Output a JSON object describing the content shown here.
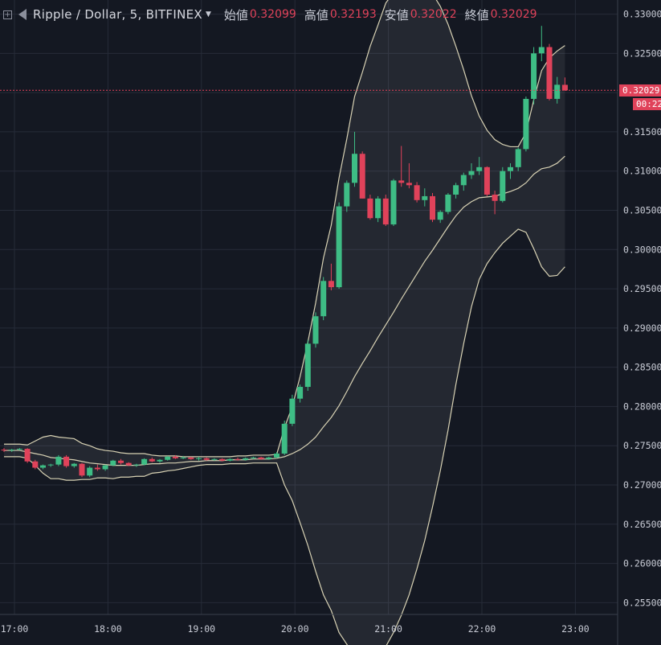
{
  "legend": {
    "symbol": "Ripple / Dollar, 5, BITFINEX",
    "open_label": "始値",
    "open": "0.32099",
    "high_label": "高値",
    "high": "0.32193",
    "low_label": "安値",
    "low": "0.32022",
    "close_label": "終値",
    "close": "0.32029"
  },
  "price_tag": {
    "price": "0.32029",
    "countdown": "00:22",
    "color": "#e0425a"
  },
  "colors": {
    "up": "#3ebd85",
    "down": "#e0425a",
    "band": "#d8d2b4",
    "background": "#141822",
    "grid": "#262b38"
  },
  "chart_data": {
    "type": "candlestick",
    "y_ticks": [
      "0.33000",
      "0.32500",
      "0.32000",
      "0.31500",
      "0.31000",
      "0.30500",
      "0.30000",
      "0.29500",
      "0.29000",
      "0.28500",
      "0.28000",
      "0.27500",
      "0.27000",
      "0.26500",
      "0.26000",
      "0.25500"
    ],
    "x_ticks": [
      "17:00",
      "18:00",
      "19:00",
      "20:00",
      "21:00",
      "22:00",
      "23:00"
    ],
    "ylim": [
      0.2535,
      0.3318
    ],
    "grid": true,
    "current_price": 0.32029,
    "candles": [
      [
        0.2745,
        0.2747,
        0.2742,
        0.2744
      ],
      [
        0.2744,
        0.2746,
        0.2742,
        0.2745
      ],
      [
        0.2745,
        0.2747,
        0.2744,
        0.2746
      ],
      [
        0.2746,
        0.2747,
        0.2728,
        0.273
      ],
      [
        0.273,
        0.2732,
        0.272,
        0.2722
      ],
      [
        0.2722,
        0.2726,
        0.272,
        0.2725
      ],
      [
        0.2725,
        0.2727,
        0.2723,
        0.2726
      ],
      [
        0.2726,
        0.2738,
        0.2724,
        0.2736
      ],
      [
        0.2736,
        0.2738,
        0.2722,
        0.2724
      ],
      [
        0.2724,
        0.2728,
        0.2722,
        0.2727
      ],
      [
        0.2727,
        0.2728,
        0.271,
        0.2712
      ],
      [
        0.2712,
        0.2724,
        0.271,
        0.2722
      ],
      [
        0.2722,
        0.2726,
        0.2718,
        0.272
      ],
      [
        0.272,
        0.2726,
        0.2718,
        0.2725
      ],
      [
        0.2725,
        0.2732,
        0.2724,
        0.2731
      ],
      [
        0.2731,
        0.2733,
        0.2726,
        0.2728
      ],
      [
        0.2728,
        0.2729,
        0.2724,
        0.2725
      ],
      [
        0.2725,
        0.2727,
        0.2723,
        0.2726
      ],
      [
        0.2726,
        0.2734,
        0.2725,
        0.2733
      ],
      [
        0.2733,
        0.2735,
        0.2729,
        0.273
      ],
      [
        0.273,
        0.2733,
        0.2728,
        0.2732
      ],
      [
        0.2732,
        0.2737,
        0.2731,
        0.2736
      ],
      [
        0.2736,
        0.2738,
        0.2733,
        0.2734
      ],
      [
        0.2734,
        0.2737,
        0.2733,
        0.2735
      ],
      [
        0.2735,
        0.2736,
        0.2732,
        0.2733
      ],
      [
        0.2733,
        0.2736,
        0.2731,
        0.2734
      ],
      [
        0.2734,
        0.2735,
        0.2731,
        0.2732
      ],
      [
        0.2732,
        0.2734,
        0.2731,
        0.2733
      ],
      [
        0.2733,
        0.2734,
        0.273,
        0.2731
      ],
      [
        0.2731,
        0.2734,
        0.273,
        0.2733
      ],
      [
        0.2733,
        0.2735,
        0.2731,
        0.2732
      ],
      [
        0.2732,
        0.2735,
        0.2731,
        0.2734
      ],
      [
        0.2734,
        0.2736,
        0.2733,
        0.2735
      ],
      [
        0.2735,
        0.2736,
        0.2732,
        0.2733
      ],
      [
        0.2733,
        0.2736,
        0.2732,
        0.2735
      ],
      [
        0.2735,
        0.2742,
        0.2734,
        0.274
      ],
      [
        0.274,
        0.2782,
        0.2738,
        0.2778
      ],
      [
        0.2778,
        0.2815,
        0.2775,
        0.281
      ],
      [
        0.281,
        0.2828,
        0.2805,
        0.2825
      ],
      [
        0.2825,
        0.2885,
        0.282,
        0.288
      ],
      [
        0.288,
        0.292,
        0.2875,
        0.2915
      ],
      [
        0.2915,
        0.2965,
        0.291,
        0.296
      ],
      [
        0.296,
        0.2982,
        0.2948,
        0.2952
      ],
      [
        0.2952,
        0.306,
        0.295,
        0.3055
      ],
      [
        0.3055,
        0.3088,
        0.3048,
        0.3085
      ],
      [
        0.3085,
        0.315,
        0.308,
        0.3122
      ],
      [
        0.3122,
        0.3125,
        0.3065,
        0.3065
      ],
      [
        0.3065,
        0.307,
        0.3038,
        0.304
      ],
      [
        0.304,
        0.3068,
        0.3035,
        0.3065
      ],
      [
        0.3065,
        0.307,
        0.303,
        0.3032
      ],
      [
        0.3032,
        0.309,
        0.303,
        0.3088
      ],
      [
        0.3088,
        0.3132,
        0.308,
        0.3085
      ],
      [
        0.3085,
        0.311,
        0.3078,
        0.3082
      ],
      [
        0.3082,
        0.3086,
        0.306,
        0.3063
      ],
      [
        0.3063,
        0.3078,
        0.3055,
        0.3068
      ],
      [
        0.3068,
        0.3072,
        0.3035,
        0.3038
      ],
      [
        0.3038,
        0.305,
        0.3034,
        0.3048
      ],
      [
        0.3048,
        0.3072,
        0.3045,
        0.307
      ],
      [
        0.307,
        0.3085,
        0.3065,
        0.3082
      ],
      [
        0.3082,
        0.3098,
        0.3075,
        0.3095
      ],
      [
        0.3095,
        0.311,
        0.309,
        0.31
      ],
      [
        0.31,
        0.3118,
        0.3095,
        0.3105
      ],
      [
        0.3105,
        0.3106,
        0.3068,
        0.307
      ],
      [
        0.307,
        0.3075,
        0.3045,
        0.3062
      ],
      [
        0.3062,
        0.3105,
        0.306,
        0.31
      ],
      [
        0.31,
        0.311,
        0.309,
        0.3105
      ],
      [
        0.3105,
        0.313,
        0.31,
        0.3128
      ],
      [
        0.3128,
        0.3195,
        0.3125,
        0.3192
      ],
      [
        0.3192,
        0.3258,
        0.3185,
        0.325
      ],
      [
        0.325,
        0.3285,
        0.324,
        0.3258
      ],
      [
        0.3258,
        0.3262,
        0.319,
        0.3192
      ],
      [
        0.3192,
        0.322,
        0.3186,
        0.321
      ],
      [
        0.32099,
        0.32193,
        0.32022,
        0.32029
      ]
    ],
    "bollinger_upper": [
      0.2752,
      0.2752,
      0.2752,
      0.2751,
      0.2756,
      0.2761,
      0.2763,
      0.2761,
      0.276,
      0.2759,
      0.2753,
      0.275,
      0.2746,
      0.2744,
      0.2743,
      0.2741,
      0.274,
      0.274,
      0.274,
      0.2738,
      0.2737,
      0.2737,
      0.2737,
      0.2736,
      0.2736,
      0.2736,
      0.2736,
      0.2736,
      0.2736,
      0.2736,
      0.2737,
      0.2737,
      0.2738,
      0.2738,
      0.2738,
      0.2739,
      0.2773,
      0.28,
      0.2838,
      0.2882,
      0.2932,
      0.2989,
      0.3031,
      0.3091,
      0.3141,
      0.3195,
      0.3226,
      0.3259,
      0.3286,
      0.3314,
      0.3328,
      0.334,
      0.3346,
      0.3346,
      0.3341,
      0.3326,
      0.331,
      0.3287,
      0.3259,
      0.3229,
      0.3196,
      0.317,
      0.3152,
      0.314,
      0.3134,
      0.3131,
      0.3131,
      0.3149,
      0.3191,
      0.3228,
      0.3244,
      0.3253,
      0.326
    ],
    "bollinger_mid": [
      0.2744,
      0.2744,
      0.2744,
      0.2742,
      0.274,
      0.2738,
      0.2735,
      0.2734,
      0.2733,
      0.2732,
      0.273,
      0.2728,
      0.2727,
      0.2726,
      0.2725,
      0.2725,
      0.2725,
      0.2725,
      0.2726,
      0.2727,
      0.2727,
      0.2728,
      0.2728,
      0.2729,
      0.273,
      0.273,
      0.2731,
      0.2731,
      0.2731,
      0.2732,
      0.2732,
      0.2732,
      0.2733,
      0.2733,
      0.2733,
      0.2734,
      0.2736,
      0.274,
      0.2745,
      0.2752,
      0.2761,
      0.2774,
      0.2786,
      0.2801,
      0.2819,
      0.2838,
      0.2855,
      0.2871,
      0.2888,
      0.2904,
      0.292,
      0.2937,
      0.2953,
      0.2969,
      0.2985,
      0.2999,
      0.3014,
      0.3029,
      0.3043,
      0.3054,
      0.3061,
      0.3066,
      0.3067,
      0.3068,
      0.3071,
      0.3074,
      0.3078,
      0.3085,
      0.3096,
      0.3103,
      0.3105,
      0.311,
      0.3119
    ],
    "bollinger_lower": [
      0.2736,
      0.2736,
      0.2736,
      0.2734,
      0.2725,
      0.2715,
      0.2708,
      0.2708,
      0.2706,
      0.2706,
      0.2707,
      0.2707,
      0.2709,
      0.2709,
      0.2708,
      0.271,
      0.271,
      0.2711,
      0.2711,
      0.2715,
      0.2716,
      0.2718,
      0.2719,
      0.2721,
      0.2723,
      0.2725,
      0.2726,
      0.2726,
      0.2726,
      0.2727,
      0.2727,
      0.2727,
      0.2728,
      0.2728,
      0.2728,
      0.2728,
      0.27,
      0.268,
      0.2652,
      0.2623,
      0.259,
      0.256,
      0.254,
      0.2512,
      0.2497,
      0.2481,
      0.2485,
      0.2483,
      0.249,
      0.2494,
      0.2512,
      0.2534,
      0.256,
      0.2593,
      0.2629,
      0.2672,
      0.2718,
      0.277,
      0.2828,
      0.288,
      0.2927,
      0.2962,
      0.2982,
      0.2996,
      0.3008,
      0.3017,
      0.3026,
      0.3022,
      0.3001,
      0.2978,
      0.2966,
      0.2967,
      0.2978
    ]
  }
}
